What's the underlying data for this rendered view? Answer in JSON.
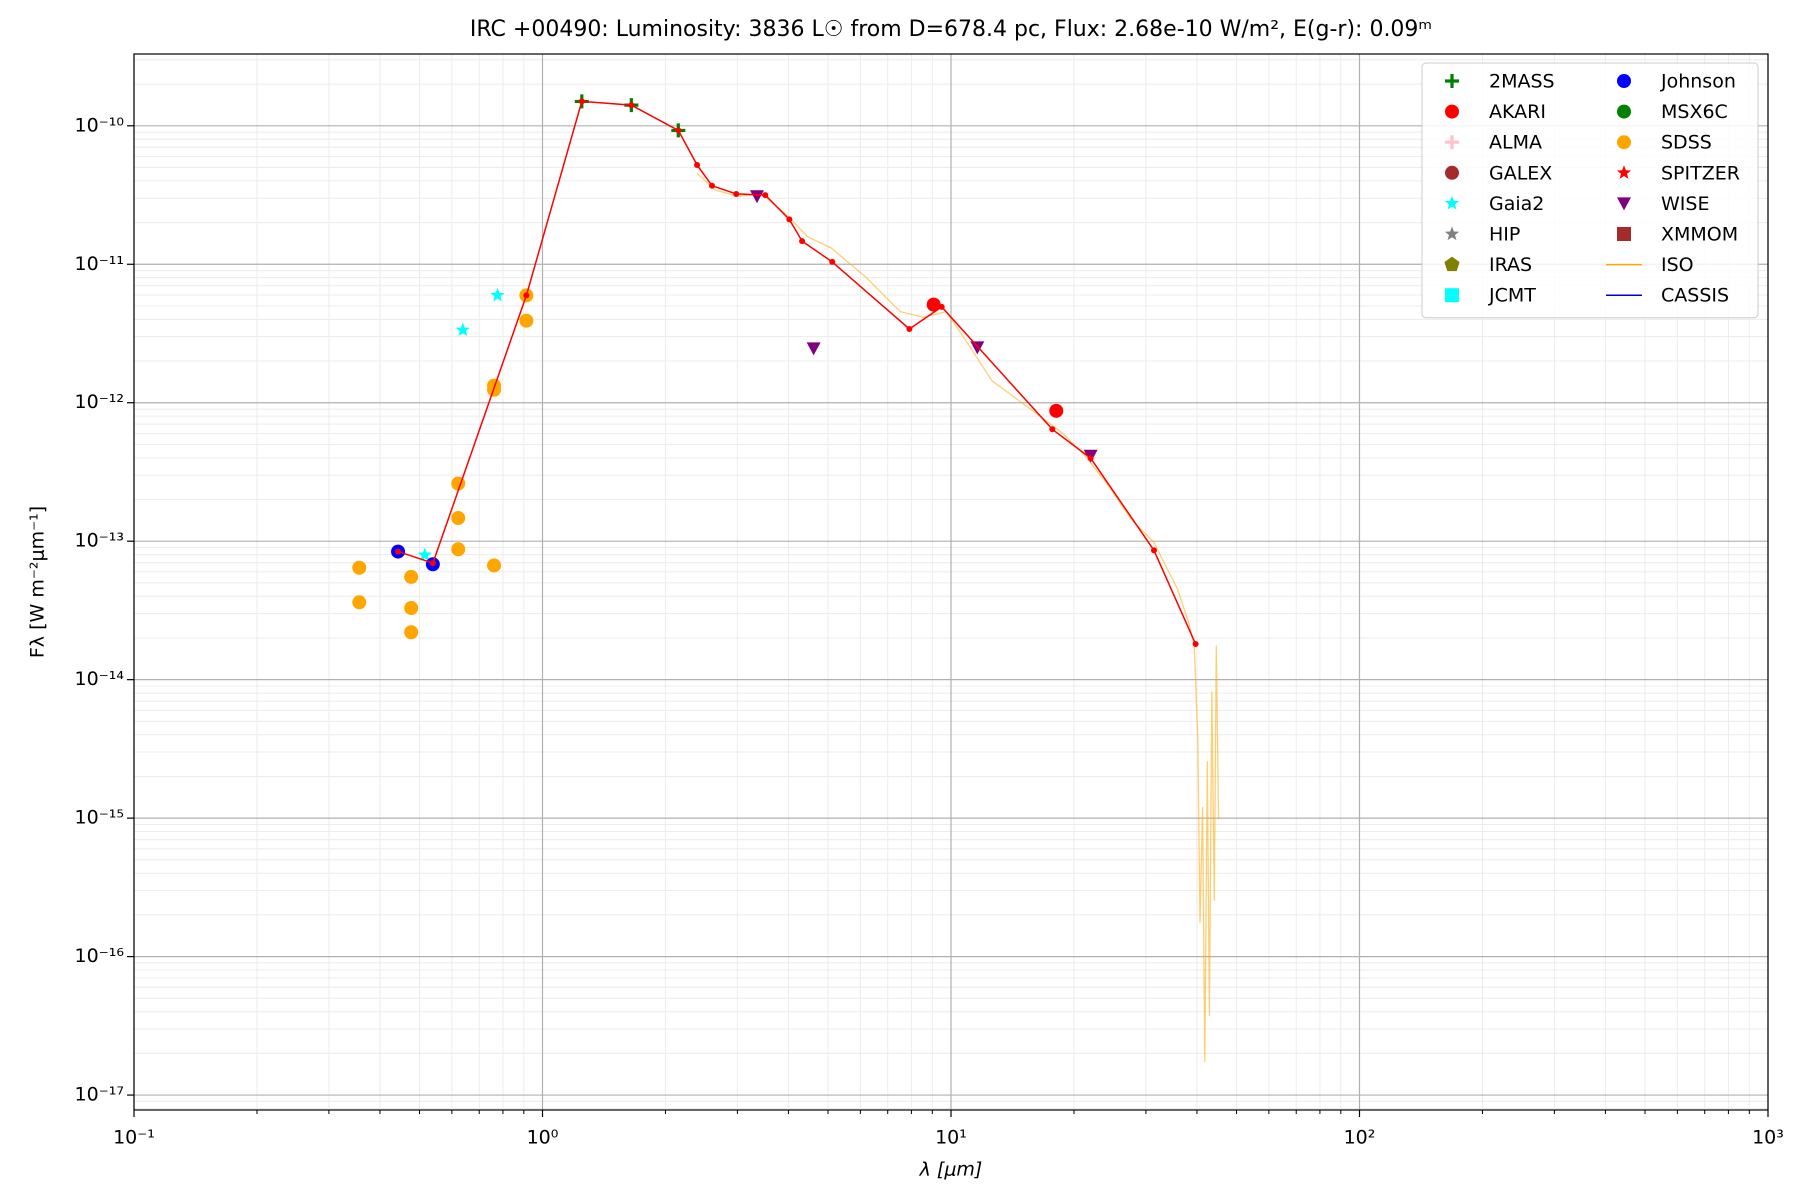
{
  "chart_data": {
    "type": "scatter",
    "title": "IRC +00490:  Luminosity: 3836 L☉ from D=678.4 pc, Flux: 2.68e-10 W/m², E(g-r): 0.09ᵐ",
    "x_label": "λ [μm]",
    "y_label": "Fλ [W m⁻²μm⁻¹]",
    "x_log": true,
    "y_log": true,
    "grid": true,
    "minor_grid": true,
    "legend": "upper right",
    "xlim": [
      0.1,
      1000
    ],
    "ylim": [
      7.8e-18,
      3.3e-10
    ],
    "xticks": [
      {
        "value": 0.1,
        "label": "10⁻¹"
      },
      {
        "value": 1,
        "label": "10⁰"
      },
      {
        "value": 10,
        "label": "10¹"
      },
      {
        "value": 100,
        "label": "10²"
      },
      {
        "value": 1000,
        "label": "10³"
      }
    ],
    "yticks": [
      {
        "value": 1e-17,
        "label": "10⁻¹⁷"
      },
      {
        "value": 1e-16,
        "label": "10⁻¹⁶"
      },
      {
        "value": 1e-15,
        "label": "10⁻¹⁵"
      },
      {
        "value": 1e-14,
        "label": "10⁻¹⁴"
      },
      {
        "value": 1e-13,
        "label": "10⁻¹³"
      },
      {
        "value": 1e-12,
        "label": "10⁻¹²"
      },
      {
        "value": 1e-11,
        "label": "10⁻¹¹"
      },
      {
        "value": 1e-10,
        "label": "10⁻¹⁰"
      }
    ],
    "series": [
      {
        "name": "2MASS",
        "color": "#008000",
        "marker": "plus",
        "x": [
          1.248,
          1.65,
          2.15
        ],
        "values": [
          1.5e-10,
          1.41e-10,
          9.26e-11
        ]
      },
      {
        "name": "AKARI",
        "color": "#ff0000",
        "marker": "circle",
        "x": [
          9.07,
          18.1
        ],
        "values": [
          5.11e-12,
          8.74e-13
        ]
      },
      {
        "name": "ALMA",
        "color": "#ffc0cb",
        "marker": "plus",
        "x": [],
        "values": []
      },
      {
        "name": "GALEX",
        "color": "#a52a2a",
        "marker": "circle",
        "x": [],
        "values": []
      },
      {
        "name": "Gaia2",
        "color": "#00ffff",
        "marker": "star",
        "x": [
          0.638,
          0.776,
          0.515
        ],
        "values": [
          3.35e-12,
          5.96e-12,
          7.94e-14
        ]
      },
      {
        "name": "HIP",
        "color": "#808080",
        "marker": "star",
        "x": [],
        "values": []
      },
      {
        "name": "IRAS",
        "color": "#808000",
        "marker": "pentagon",
        "x": [],
        "values": []
      },
      {
        "name": "JCMT",
        "color": "#00ffff",
        "marker": "square",
        "x": [],
        "values": []
      },
      {
        "name": "Johnson",
        "color": "#0000ff",
        "marker": "circle",
        "x": [
          0.443,
          0.539
        ],
        "values": [
          8.41e-14,
          6.81e-14
        ]
      },
      {
        "name": "MSX6C",
        "color": "#008000",
        "marker": "circle",
        "x": [],
        "values": []
      },
      {
        "name": "SDSS",
        "color": "#ffa500",
        "marker": "circle",
        "x": [
          0.356,
          0.356,
          0.477,
          0.477,
          0.477,
          0.622,
          0.622,
          0.622,
          0.761,
          0.761,
          0.761,
          0.913,
          0.913
        ],
        "values": [
          6.43e-14,
          3.62e-14,
          5.52e-14,
          3.29e-14,
          2.2e-14,
          2.61e-13,
          1.47e-13,
          8.74e-14,
          1.33e-12,
          1.24e-12,
          6.68e-14,
          5.96e-12,
          3.91e-12
        ]
      },
      {
        "name": "SPITZER",
        "color": "#ff0000",
        "marker": "star",
        "x": [],
        "values": []
      },
      {
        "name": "WISE",
        "color": "#800080",
        "marker": "triangle",
        "x": [
          3.35,
          4.61,
          11.6,
          21.97
        ],
        "values": [
          3.1e-11,
          2.47e-12,
          2.51e-12,
          4.14e-13
        ]
      },
      {
        "name": "XMMOM",
        "color": "#a52a2a",
        "marker": "square",
        "x": [],
        "values": []
      },
      {
        "name": "ISO",
        "color": "#ffa500",
        "marker": "line",
        "x": [
          2.39,
          2.65,
          3.02,
          3.44,
          3.92,
          4.46,
          5.09,
          6.18,
          7.51,
          8.55,
          9.74,
          11.1,
          12.6,
          14.4,
          16.4,
          18.7,
          21.3,
          24.2,
          27.6,
          31.4,
          33.5,
          35.8,
          38.2,
          39.4,
          40.2,
          40.7,
          41.3,
          41.8,
          42.4,
          42.9,
          43.5,
          44.1,
          44.6,
          45.2
        ],
        "values": [
          4.55e-11,
          3.42e-11,
          3.1e-11,
          3.22e-11,
          2.33e-11,
          1.58e-11,
          1.31e-11,
          8.1e-12,
          4.55e-12,
          4.14e-12,
          4.55e-12,
          2.56e-12,
          1.44e-12,
          1.08e-12,
          8.1e-13,
          6.07e-13,
          4.14e-13,
          2.56e-13,
          1.44e-13,
          9.8e-14,
          6.68e-14,
          4.55e-14,
          2.56e-14,
          1.75e-14,
          3.76e-15,
          1.75e-16,
          1.19e-15,
          1.75e-17,
          2.56e-15,
          3.76e-17,
          8.1e-15,
          2.56e-16,
          1.75e-14,
          9.8e-16
        ]
      },
      {
        "name": "CASSIS",
        "color": "#0000cd",
        "marker": "line",
        "x": [],
        "values": []
      },
      {
        "color": "#ff0000",
        "marker": "dot",
        "line": true,
        "x": [
          0.443,
          0.539,
          0.913,
          1.248,
          1.65,
          2.15,
          2.39,
          2.6,
          2.98,
          3.51,
          4.02,
          4.32,
          5.12,
          7.91,
          9.49,
          17.7,
          21.97,
          31.4,
          39.7
        ],
        "values": [
          8.41e-14,
          6.95e-14,
          5.96e-12,
          1.5e-10,
          1.41e-10,
          9.26e-11,
          5.21e-11,
          3.69e-11,
          3.22e-11,
          3.16e-11,
          2.11e-11,
          1.47e-11,
          1.04e-11,
          3.41e-12,
          4.92e-12,
          6.43e-13,
          3.98e-13,
          8.58e-14,
          1.81e-14
        ]
      }
    ]
  }
}
